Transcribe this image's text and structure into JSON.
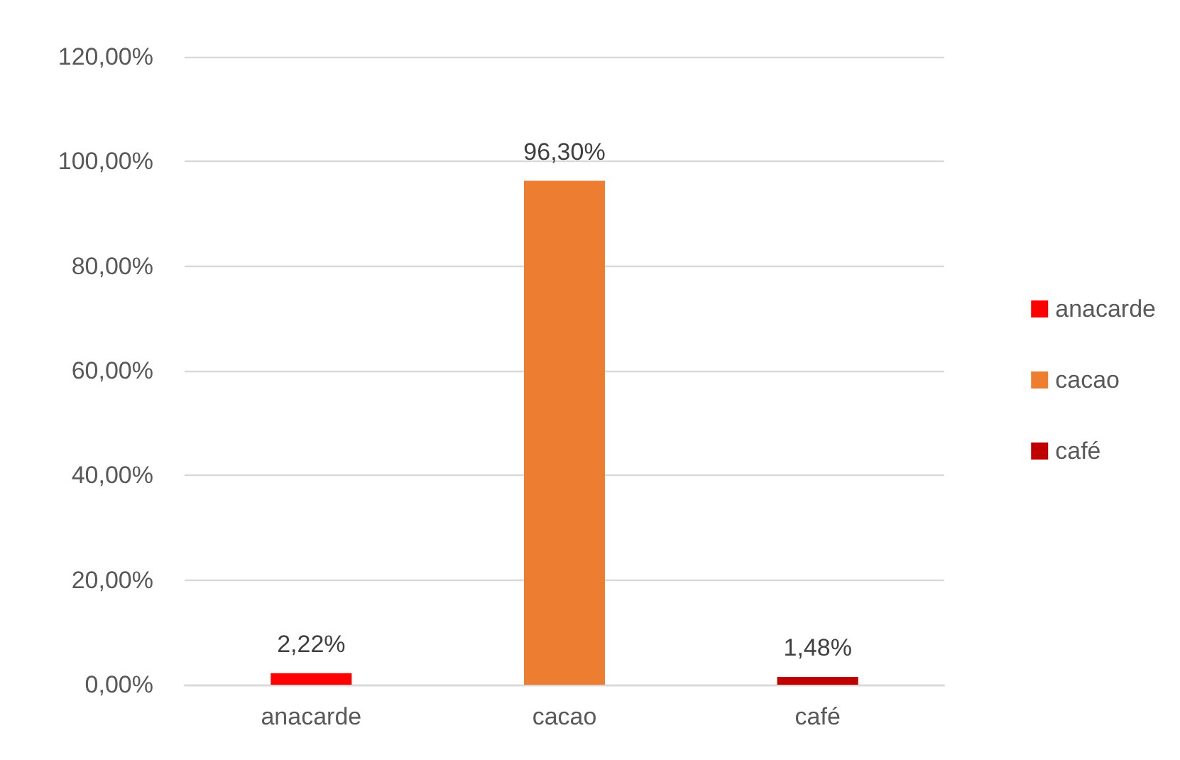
{
  "chart_data": {
    "type": "bar",
    "categories": [
      "anacarde",
      "cacao",
      "café"
    ],
    "series": [
      {
        "name": "anacarde",
        "color": "#ff0000",
        "values": [
          2.22,
          null,
          null
        ],
        "value_labels": [
          "2,22%",
          null,
          null
        ]
      },
      {
        "name": "cacao",
        "color": "#ed7d31",
        "values": [
          null,
          96.3,
          null
        ],
        "value_labels": [
          null,
          "96,30%",
          null
        ]
      },
      {
        "name": "café",
        "color": "#c00000",
        "values": [
          null,
          null,
          1.48
        ],
        "value_labels": [
          null,
          null,
          "1,48%"
        ]
      }
    ],
    "ylim": [
      0,
      120
    ],
    "yticks": [
      {
        "value": 0,
        "label": "0,00%"
      },
      {
        "value": 20,
        "label": "20,00%"
      },
      {
        "value": 40,
        "label": "40,00%"
      },
      {
        "value": 60,
        "label": "60,00%"
      },
      {
        "value": 80,
        "label": "80,00%"
      },
      {
        "value": 100,
        "label": "100,00%"
      },
      {
        "value": 120,
        "label": "120,00%"
      }
    ],
    "grid": "y",
    "legend": "right"
  }
}
